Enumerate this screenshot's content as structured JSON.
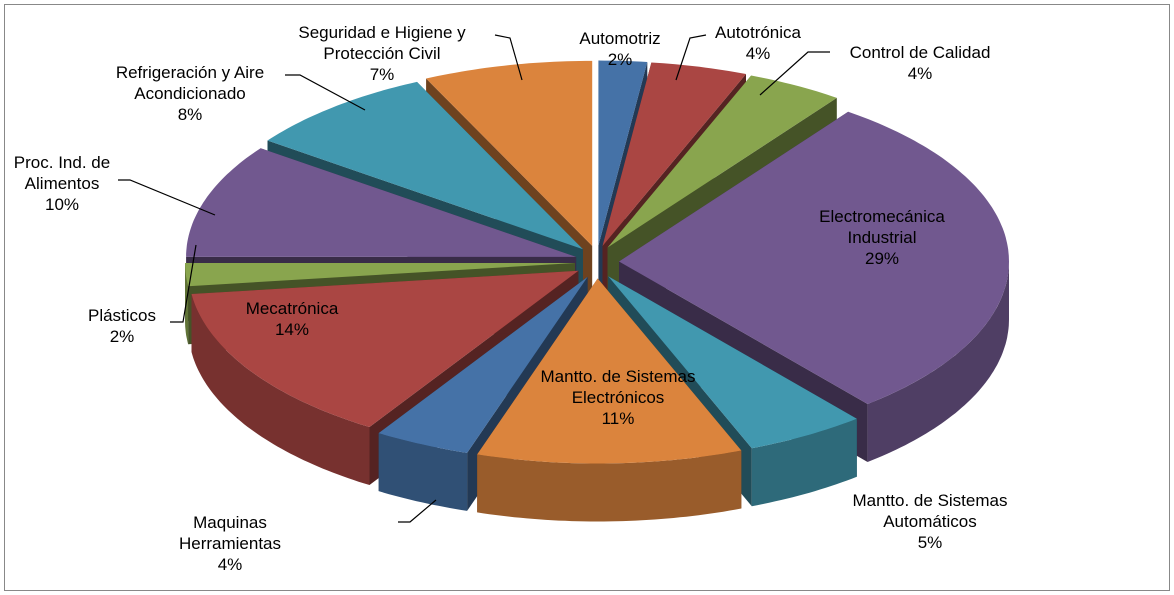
{
  "chart_data": {
    "type": "pie",
    "categories": [
      "Automotriz",
      "Autotrónica",
      "Control de Calidad",
      "Electromecánica Industrial",
      "Mantto. de Sistemas Automáticos",
      "Mantto. de Sistemas Electrónicos",
      "Maquinas Herramientas",
      "Mecatrónica",
      "Plásticos",
      "Proc. Ind. de Alimentos",
      "Refrigeración y Aire Acondicionado",
      "Seguridad e Higiene y Protección Civil"
    ],
    "values": [
      2,
      4,
      4,
      29,
      5,
      11,
      4,
      14,
      2,
      10,
      8,
      7
    ],
    "value_labels": [
      "2%",
      "4%",
      "4%",
      "29%",
      "5%",
      "11%",
      "4%",
      "14%",
      "2%",
      "10%",
      "8%",
      "7%"
    ],
    "colors": [
      "#4572a7",
      "#aa4643",
      "#89a54e",
      "#71588f",
      "#4198af",
      "#db843d",
      "#4572a7",
      "#aa4643",
      "#89a54e",
      "#71588f",
      "#4198af",
      "#db843d"
    ]
  }
}
